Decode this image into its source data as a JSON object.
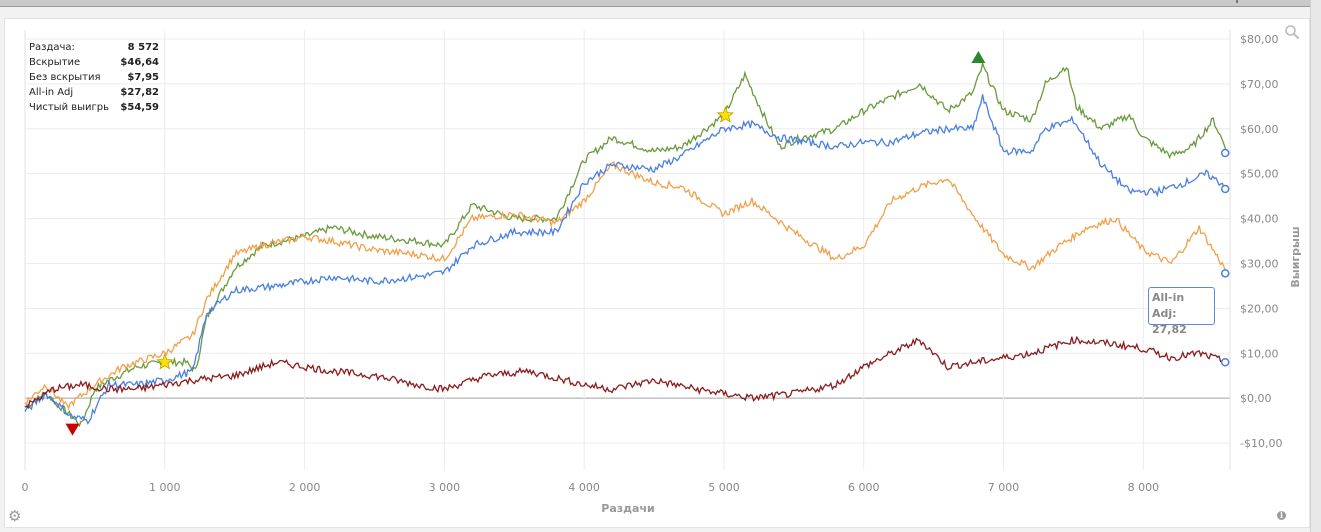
{
  "stats": [
    {
      "label": "Раздача:",
      "value": "8 572"
    },
    {
      "label": "Вскрытие",
      "value": "$46,64"
    },
    {
      "label": "Без вскрытия",
      "value": "$7,95"
    },
    {
      "label": "All-in Adj",
      "value": "$27,82"
    },
    {
      "label": "Чистый выигрь",
      "value": "$54,59"
    }
  ],
  "tooltip": {
    "label": "All-in Adj:",
    "value": "27,82"
  },
  "icons": {
    "zoom": "zoom-magnifier-icon",
    "settings": "gear-icon",
    "info": "info-icon"
  },
  "chart_data": {
    "type": "line",
    "xlabel": "Раздачи",
    "ylabel": "Выигрыш",
    "xlim": [
      0,
      8620
    ],
    "ylim": [
      -16,
      82
    ],
    "x_ticks": [
      0,
      1000,
      2000,
      3000,
      4000,
      5000,
      6000,
      7000,
      8000
    ],
    "x_tick_labels": [
      "0",
      "1 000",
      "2 000",
      "3 000",
      "4 000",
      "5 000",
      "6 000",
      "7 000",
      "8 000"
    ],
    "y_ticks": [
      -10,
      0,
      10,
      20,
      30,
      40,
      50,
      60,
      70,
      80
    ],
    "y_tick_labels": [
      "-$10,00",
      "$0,00",
      "$10,00",
      "$20,00",
      "$30,00",
      "$40,00",
      "$50,00",
      "$60,00",
      "$70,00",
      "$80,00"
    ],
    "grid": true,
    "series": [
      {
        "color": "#6a9a3c",
        "x": [
          0,
          150,
          330,
          400,
          500,
          600,
          800,
          1000,
          1150,
          1220,
          1300,
          1500,
          1700,
          2000,
          2200,
          2500,
          2800,
          3000,
          3200,
          3500,
          3800,
          4000,
          4200,
          4500,
          4700,
          5000,
          5150,
          5300,
          5400,
          5550,
          5800,
          6000,
          6200,
          6400,
          6600,
          6780,
          6850,
          7000,
          7200,
          7300,
          7450,
          7520,
          7700,
          7900,
          8000,
          8200,
          8350,
          8500,
          8600
        ],
        "y": [
          -2,
          1,
          -4,
          -6,
          2,
          4,
          7,
          8,
          8,
          6,
          18,
          29,
          34,
          36,
          38,
          36,
          35,
          34,
          43,
          40,
          40,
          53,
          58,
          55,
          56,
          63,
          72,
          62,
          56,
          58,
          60,
          64,
          67,
          70,
          64,
          68,
          74,
          64,
          62,
          70,
          74,
          65,
          60,
          63,
          58,
          54,
          56,
          62,
          55
        ]
      },
      {
        "color": "#f0a04a",
        "x": [
          0,
          150,
          300,
          500,
          700,
          1000,
          1200,
          1300,
          1500,
          1700,
          2000,
          2200,
          2500,
          2800,
          3000,
          3200,
          3500,
          3800,
          4000,
          4200,
          4500,
          4700,
          5000,
          5200,
          5500,
          5800,
          6000,
          6200,
          6400,
          6600,
          6800,
          7000,
          7200,
          7400,
          7600,
          7800,
          8000,
          8200,
          8400,
          8600
        ],
        "y": [
          -1,
          3,
          -2,
          3,
          7,
          10,
          14,
          22,
          32,
          34,
          36,
          35,
          33,
          32,
          31,
          40,
          41,
          39,
          44,
          52,
          48,
          47,
          41,
          44,
          37,
          31,
          34,
          44,
          47,
          49,
          40,
          32,
          29,
          34,
          38,
          40,
          33,
          30,
          38,
          28
        ]
      },
      {
        "color": "#4a7fe0",
        "x": [
          0,
          150,
          330,
          450,
          600,
          800,
          1000,
          1200,
          1300,
          1500,
          1800,
          2000,
          2200,
          2500,
          2800,
          3000,
          3200,
          3500,
          3800,
          4000,
          4200,
          4500,
          4700,
          5000,
          5200,
          5400,
          5600,
          5800,
          6000,
          6200,
          6400,
          6600,
          6780,
          6850,
          7000,
          7200,
          7300,
          7500,
          7700,
          7900,
          8100,
          8300,
          8450,
          8600
        ],
        "y": [
          -3,
          1,
          -4,
          -5,
          3,
          3,
          4,
          6,
          19,
          24,
          25,
          26,
          27,
          26,
          27,
          28,
          34,
          37,
          37,
          48,
          52,
          51,
          54,
          60,
          61,
          58,
          57,
          56,
          57,
          57,
          59,
          60,
          60,
          67,
          55,
          55,
          60,
          62,
          52,
          46,
          46,
          48,
          50,
          47
        ]
      },
      {
        "color": "#8b1c1c",
        "x": [
          0,
          200,
          400,
          600,
          800,
          1000,
          1200,
          1500,
          1800,
          2000,
          2200,
          2500,
          2800,
          3000,
          3300,
          3600,
          4000,
          4200,
          4500,
          4800,
          5000,
          5200,
          5500,
          5800,
          6000,
          6200,
          6400,
          6600,
          6800,
          7000,
          7200,
          7500,
          7800,
          8000,
          8200,
          8400,
          8600
        ],
        "y": [
          -2,
          2,
          3,
          2,
          2,
          3,
          4,
          5,
          8,
          7,
          6,
          5,
          3,
          2,
          5,
          6,
          3,
          2,
          4,
          2,
          1,
          0,
          1,
          3,
          7,
          10,
          13,
          7,
          8,
          9,
          10,
          13,
          12,
          11,
          9,
          10,
          8
        ]
      }
    ],
    "markers": [
      {
        "type": "triangle-down",
        "color": "#d00000",
        "x": 340,
        "y": -7
      },
      {
        "type": "star",
        "color": "#ffe000",
        "x": 1000,
        "y": 8
      },
      {
        "type": "star",
        "color": "#ffe000",
        "x": 5010,
        "y": 63
      },
      {
        "type": "triangle-up",
        "color": "#2a8a2a",
        "x": 6820,
        "y": 76
      }
    ],
    "end_points": [
      {
        "x": 8600,
        "y": 54.6,
        "color": "#4a7fe0"
      },
      {
        "x": 8600,
        "y": 46.6,
        "color": "#4a7fe0"
      },
      {
        "x": 8600,
        "y": 27.8,
        "color": "#4a7fe0"
      },
      {
        "x": 8600,
        "y": 8,
        "color": "#4a7fe0"
      }
    ]
  }
}
